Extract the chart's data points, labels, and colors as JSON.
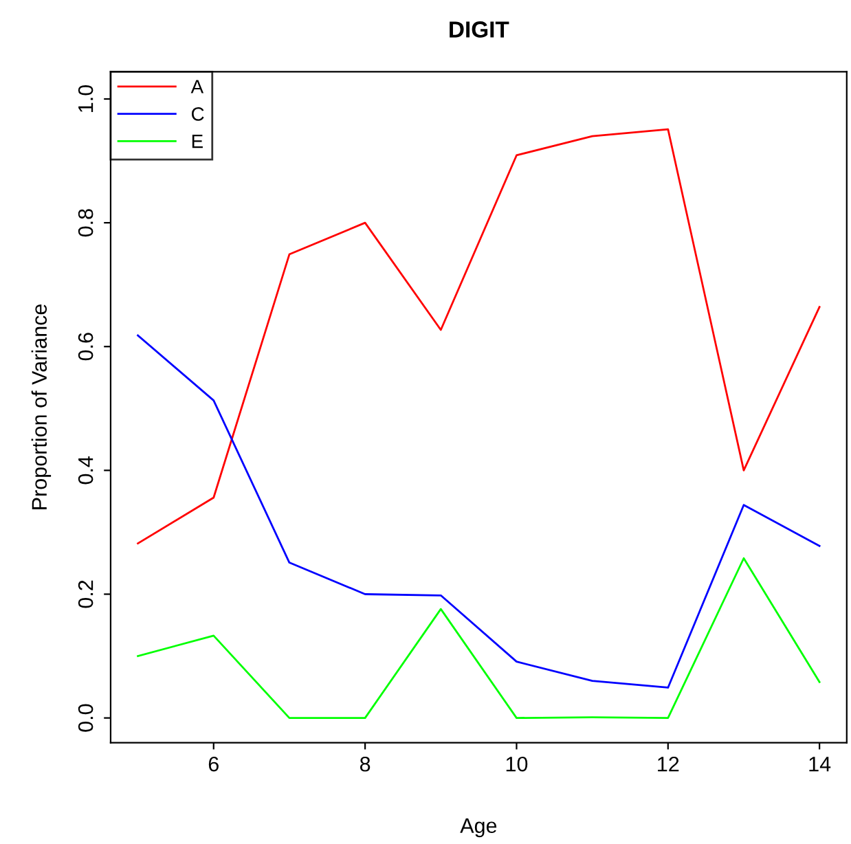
{
  "chart_data": {
    "type": "line",
    "title": "DIGIT",
    "xlabel": "Age",
    "ylabel": "Proportion of Variance",
    "x": [
      5,
      6,
      7,
      8,
      9,
      10,
      11,
      12,
      13,
      14
    ],
    "series": [
      {
        "name": "A",
        "color": "#ff0000",
        "values": [
          0.282,
          0.356,
          0.749,
          0.8,
          0.627,
          0.909,
          0.94,
          0.951,
          0.4,
          0.664
        ]
      },
      {
        "name": "C",
        "color": "#0000ff",
        "values": [
          0.618,
          0.513,
          0.251,
          0.2,
          0.198,
          0.091,
          0.06,
          0.049,
          0.344,
          0.278
        ]
      },
      {
        "name": "E",
        "color": "#00ff00",
        "values": [
          0.1,
          0.133,
          0.0,
          0.0,
          0.176,
          0.0,
          0.001,
          0.0,
          0.258,
          0.058
        ]
      }
    ],
    "xlim": [
      4.64,
      14.36
    ],
    "ylim": [
      -0.04,
      1.044
    ],
    "xticks": [
      6,
      8,
      10,
      12,
      14
    ],
    "yticks": [
      {
        "value": 0.0,
        "label": "0.0"
      },
      0.2,
      0.4,
      0.6,
      0.8,
      {
        "value": 1.0,
        "label": "1.0"
      }
    ],
    "grid": false,
    "legend": "top left",
    "marker": "none",
    "line_style": "solid"
  }
}
